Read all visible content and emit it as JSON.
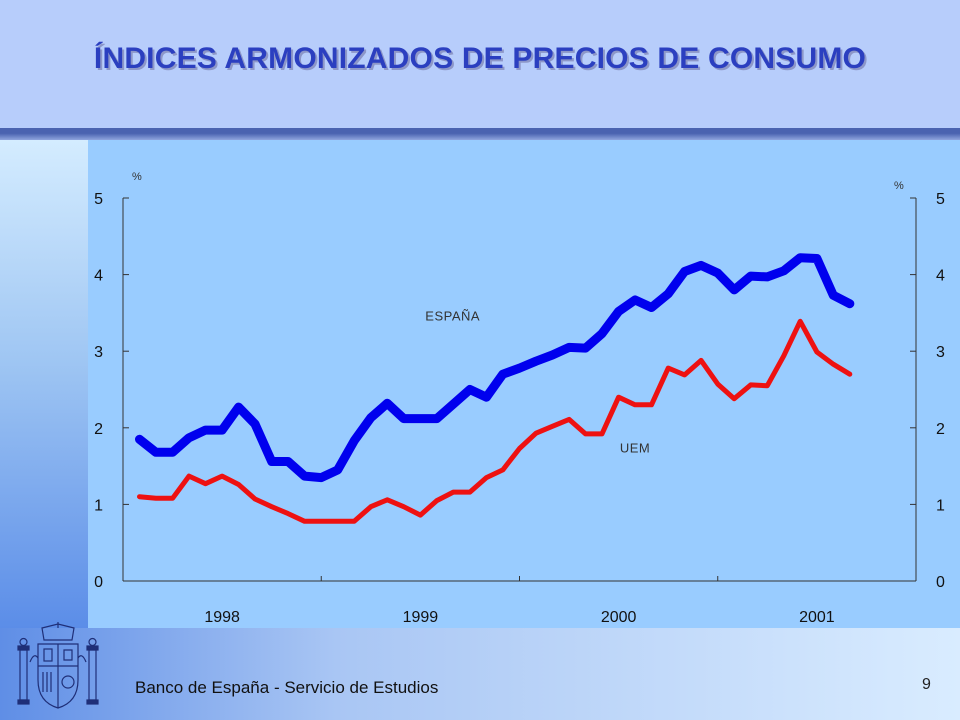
{
  "header": {
    "title": "ÍNDICES ARMONIZADOS DE PRECIOS DE CONSUMO"
  },
  "footer": {
    "text": "Banco de España - Servicio de Estudios",
    "page_number": "9"
  },
  "colors": {
    "header_bg": "#b7cdfb",
    "title": "#2b3fc0",
    "chart_bg": "#99ccff",
    "espana": "#0000ee",
    "uem": "#ee1111"
  },
  "chart_data": {
    "type": "line",
    "title": "",
    "xlabel": "",
    "ylabel": "%",
    "ylabel_right": "%",
    "ylim": [
      0,
      5
    ],
    "y_ticks": [
      "0",
      "1",
      "2",
      "3",
      "4",
      "5"
    ],
    "x_range": [
      1997.917,
      2001.917
    ],
    "x_tick_labels": [
      {
        "label": "1998",
        "x": 1998.417
      },
      {
        "label": "1999",
        "x": 1999.417
      },
      {
        "label": "2000",
        "x": 2000.417
      },
      {
        "label": "2001",
        "x": 2001.417
      }
    ],
    "x_separators": [
      1998.917,
      1999.917,
      2000.917
    ],
    "grid": false,
    "series": [
      {
        "name": "ESPAÑA",
        "color": "#0000ee",
        "label_pos": {
          "x": 1999.58,
          "y": 3.4
        },
        "x": [
          1998.0,
          1998.083,
          1998.167,
          1998.25,
          1998.333,
          1998.417,
          1998.5,
          1998.583,
          1998.667,
          1998.75,
          1998.833,
          1998.917,
          1999.0,
          1999.083,
          1999.167,
          1999.25,
          1999.333,
          1999.417,
          1999.5,
          1999.583,
          1999.667,
          1999.75,
          1999.833,
          1999.917,
          2000.0,
          2000.083,
          2000.167,
          2000.25,
          2000.333,
          2000.417,
          2000.5,
          2000.583,
          2000.667,
          2000.75,
          2000.833,
          2000.917,
          2001.0,
          2001.083,
          2001.167,
          2001.25,
          2001.333,
          2001.417,
          2001.5,
          2001.583
        ],
        "values": [
          1.85,
          1.68,
          1.68,
          1.87,
          1.97,
          1.97,
          2.27,
          2.05,
          1.56,
          1.56,
          1.37,
          1.35,
          1.45,
          1.83,
          2.13,
          2.32,
          2.12,
          2.12,
          2.12,
          2.31,
          2.5,
          2.4,
          2.7,
          2.78,
          2.87,
          2.95,
          3.05,
          3.04,
          3.23,
          3.52,
          3.67,
          3.57,
          3.75,
          4.04,
          4.12,
          4.02,
          3.8,
          3.98,
          3.97,
          4.05,
          4.22,
          4.21,
          3.73,
          3.62
        ]
      },
      {
        "name": "UEM",
        "color": "#ee1111",
        "label_pos": {
          "x": 2000.5,
          "y": 1.68
        },
        "x": [
          1998.0,
          1998.083,
          1998.167,
          1998.25,
          1998.333,
          1998.417,
          1998.5,
          1998.583,
          1998.667,
          1998.75,
          1998.833,
          1998.917,
          1999.0,
          1999.083,
          1999.167,
          1999.25,
          1999.333,
          1999.417,
          1999.5,
          1999.583,
          1999.667,
          1999.75,
          1999.833,
          1999.917,
          2000.0,
          2000.083,
          2000.167,
          2000.25,
          2000.333,
          2000.417,
          2000.5,
          2000.583,
          2000.667,
          2000.75,
          2000.833,
          2000.917,
          2001.0,
          2001.083,
          2001.167,
          2001.25,
          2001.333,
          2001.417,
          2001.5,
          2001.583
        ],
        "values": [
          1.1,
          1.08,
          1.08,
          1.37,
          1.27,
          1.37,
          1.26,
          1.07,
          0.97,
          0.88,
          0.78,
          0.78,
          0.78,
          0.78,
          0.97,
          1.06,
          0.97,
          0.86,
          1.05,
          1.16,
          1.16,
          1.35,
          1.45,
          1.73,
          1.93,
          2.02,
          2.11,
          1.92,
          1.92,
          2.4,
          2.3,
          2.3,
          2.78,
          2.69,
          2.88,
          2.57,
          2.38,
          2.56,
          2.55,
          2.94,
          3.39,
          2.99,
          2.83,
          2.7
        ]
      }
    ]
  }
}
